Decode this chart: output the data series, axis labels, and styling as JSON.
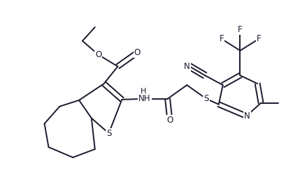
{
  "bg_color": "#ffffff",
  "line_color": "#1a1a2e",
  "line_width": 1.4,
  "font_size": 8.5,
  "figsize": [
    4.09,
    2.54
  ],
  "dpi": 100,
  "xlim": [
    0,
    409
  ],
  "ylim": [
    0,
    254
  ]
}
